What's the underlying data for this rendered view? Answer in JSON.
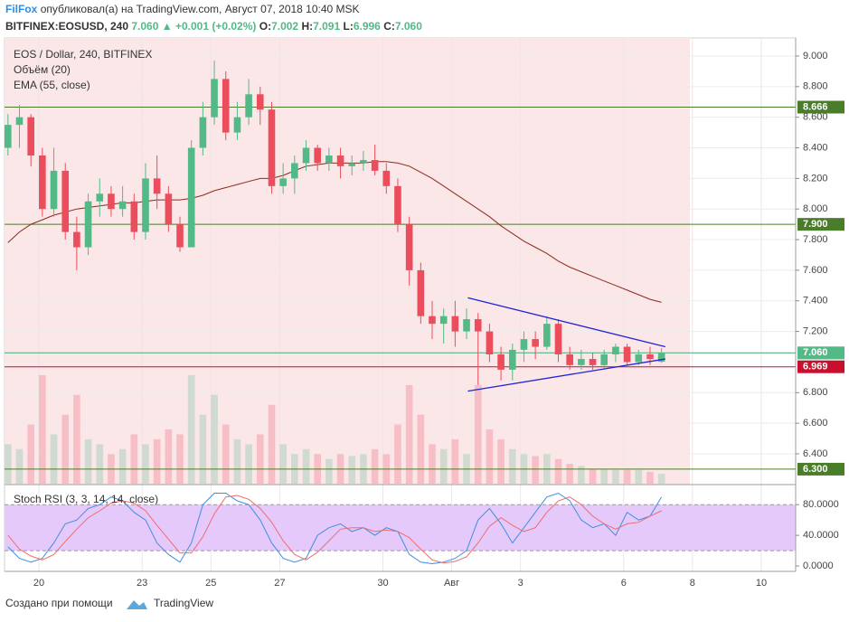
{
  "header": {
    "author": "FilFox",
    "published": "опубликовал(а) на TradingView.com, Август 07, 2018 10:40 MSK",
    "symbol": "BITFINEX:EOSUSD, 240",
    "last": "7.060",
    "arrow": "▲",
    "change": "+0.001 (+0.02%)",
    "ohlc": [
      [
        "O:",
        "7.002"
      ],
      [
        "H:",
        "7.091"
      ],
      [
        "L:",
        "6.996"
      ],
      [
        "C:",
        "7.060"
      ]
    ]
  },
  "chart_data": {
    "type": "candlestick",
    "title": "EOS / Dollar, 240, BITFINEX",
    "up_color": "#53b987",
    "down_color": "#eb4d5c",
    "grid": true,
    "xlim": [
      -1,
      22
    ],
    "xticks": [
      {
        "value": 0,
        "label": "20"
      },
      {
        "value": 3,
        "label": "23"
      },
      {
        "value": 5,
        "label": "25"
      },
      {
        "value": 7,
        "label": "27"
      },
      {
        "value": 10,
        "label": "30"
      },
      {
        "value": 12,
        "label": "Авг"
      },
      {
        "value": 14,
        "label": "3"
      },
      {
        "value": 17,
        "label": "6"
      },
      {
        "value": 19,
        "label": "8"
      },
      {
        "value": 21,
        "label": "10"
      }
    ],
    "ylim": [
      6.205,
      9.118
    ],
    "yticks": [
      {
        "value": 9.0,
        "label": "9.000"
      },
      {
        "value": 8.8,
        "label": "8.800"
      },
      {
        "value": 8.6,
        "label": "8.600"
      },
      {
        "value": 8.4,
        "label": "8.400"
      },
      {
        "value": 8.2,
        "label": "8.200"
      },
      {
        "value": 8.0,
        "label": "8.000"
      },
      {
        "value": 7.8,
        "label": "7.800"
      },
      {
        "value": 7.6,
        "label": "7.600"
      },
      {
        "value": 7.4,
        "label": "7.400"
      },
      {
        "value": 7.2,
        "label": "7.200"
      },
      {
        "value": 6.8,
        "label": "6.800"
      },
      {
        "value": 6.6,
        "label": "6.600"
      },
      {
        "value": 6.4,
        "label": "6.400"
      }
    ],
    "x": [
      -0.9,
      -0.567,
      -0.233,
      0.1,
      0.433,
      0.767,
      1.1,
      1.433,
      1.767,
      2.1,
      2.433,
      2.767,
      3.1,
      3.433,
      3.767,
      4.1,
      4.433,
      4.767,
      5.1,
      5.433,
      5.767,
      6.1,
      6.433,
      6.767,
      7.1,
      7.433,
      7.767,
      8.1,
      8.433,
      8.767,
      9.1,
      9.433,
      9.767,
      10.1,
      10.433,
      10.767,
      11.1,
      11.433,
      11.767,
      12.1,
      12.433,
      12.767,
      13.1,
      13.433,
      13.767,
      14.1,
      14.433,
      14.767,
      15.1,
      15.433,
      15.767,
      16.1,
      16.433,
      16.767,
      17.1,
      17.433,
      17.767,
      18.1
    ],
    "open": [
      8.4,
      8.55,
      8.6,
      8.35,
      8.0,
      8.25,
      7.85,
      7.75,
      8.05,
      8.1,
      8.0,
      8.05,
      7.85,
      8.2,
      8.1,
      7.9,
      7.75,
      8.4,
      8.6,
      8.85,
      8.5,
      8.6,
      8.75,
      8.65,
      8.15,
      8.2,
      8.3,
      8.4,
      8.3,
      8.35,
      8.28,
      8.3,
      8.32,
      8.25,
      8.15,
      7.9,
      7.6,
      7.3,
      7.25,
      7.3,
      7.2,
      7.28,
      7.2,
      7.05,
      6.95,
      7.08,
      7.15,
      7.1,
      7.25,
      7.05,
      6.98,
      7.02,
      6.98,
      7.05,
      7.1,
      7.0,
      7.05,
      7.002
    ],
    "high": [
      8.62,
      8.68,
      8.62,
      8.4,
      8.4,
      8.3,
      7.95,
      8.1,
      8.2,
      8.15,
      8.15,
      8.1,
      8.3,
      8.35,
      8.15,
      7.95,
      8.45,
      8.7,
      8.97,
      8.9,
      8.7,
      8.85,
      8.8,
      8.7,
      8.3,
      8.35,
      8.45,
      8.42,
      8.4,
      8.4,
      8.35,
      8.38,
      8.42,
      8.3,
      8.2,
      7.95,
      7.65,
      7.4,
      7.35,
      7.4,
      7.35,
      7.32,
      7.25,
      7.1,
      7.12,
      7.2,
      7.2,
      7.3,
      7.28,
      7.1,
      7.08,
      7.06,
      7.08,
      7.12,
      7.12,
      7.08,
      7.1,
      7.091
    ],
    "low": [
      8.35,
      8.4,
      8.28,
      7.95,
      7.95,
      7.8,
      7.6,
      7.7,
      7.95,
      7.95,
      7.95,
      7.8,
      7.8,
      8.0,
      7.85,
      7.72,
      7.75,
      8.35,
      8.55,
      8.45,
      8.45,
      8.55,
      8.55,
      8.1,
      8.1,
      8.1,
      8.25,
      8.25,
      8.25,
      8.2,
      8.22,
      8.25,
      8.22,
      8.1,
      7.85,
      7.5,
      7.25,
      7.15,
      7.12,
      7.1,
      7.15,
      6.85,
      7.0,
      6.88,
      6.88,
      7.0,
      7.02,
      7.08,
      7.0,
      6.95,
      6.95,
      6.95,
      6.96,
      7.0,
      6.98,
      6.98,
      6.98,
      6.996
    ],
    "close": [
      8.55,
      8.6,
      8.35,
      8.0,
      8.25,
      7.85,
      7.75,
      8.05,
      8.1,
      8.0,
      8.05,
      7.85,
      8.2,
      8.1,
      7.9,
      7.75,
      8.4,
      8.6,
      8.85,
      8.5,
      8.6,
      8.75,
      8.65,
      8.15,
      8.2,
      8.3,
      8.4,
      8.3,
      8.35,
      8.28,
      8.3,
      8.32,
      8.25,
      8.15,
      7.9,
      7.6,
      7.3,
      7.25,
      7.3,
      7.2,
      7.28,
      7.2,
      7.05,
      6.95,
      7.08,
      7.15,
      7.1,
      7.25,
      7.05,
      6.98,
      7.02,
      6.98,
      7.05,
      7.1,
      7.0,
      7.05,
      7.02,
      7.06
    ],
    "volume": {
      "name": "Объём (20)",
      "values": [
        40,
        35,
        60,
        110,
        50,
        70,
        90,
        45,
        40,
        30,
        35,
        50,
        40,
        45,
        55,
        50,
        110,
        70,
        90,
        60,
        45,
        40,
        50,
        80,
        40,
        30,
        35,
        30,
        25,
        30,
        28,
        30,
        35,
        30,
        60,
        100,
        70,
        40,
        35,
        45,
        30,
        100,
        55,
        45,
        35,
        30,
        28,
        30,
        25,
        20,
        18,
        15,
        15,
        14,
        14,
        14,
        12,
        10
      ]
    },
    "ema": {
      "name": "EMA (55, close)",
      "color": "#8e2a1a",
      "values": [
        7.78,
        7.85,
        7.9,
        7.93,
        7.96,
        7.98,
        8.0,
        8.01,
        8.02,
        8.03,
        8.04,
        8.04,
        8.05,
        8.06,
        8.06,
        8.06,
        8.07,
        8.09,
        8.12,
        8.14,
        8.16,
        8.18,
        8.2,
        8.2,
        8.22,
        8.25,
        8.28,
        8.29,
        8.3,
        8.3,
        8.3,
        8.3,
        8.31,
        8.31,
        8.3,
        8.28,
        8.24,
        8.2,
        8.15,
        8.1,
        8.05,
        8.0,
        7.95,
        7.89,
        7.84,
        7.79,
        7.75,
        7.71,
        7.66,
        7.62,
        7.59,
        7.56,
        7.53,
        7.5,
        7.47,
        7.44,
        7.41,
        7.39
      ]
    },
    "levels": [
      {
        "value": 8.666,
        "label": "8.666",
        "color": "#4a7d2a"
      },
      {
        "value": 7.9,
        "label": "7.900",
        "color": "#4a7d2a"
      },
      {
        "value": 6.3,
        "label": "6.300",
        "color": "#4a7d2a"
      },
      {
        "value": 6.969,
        "label": "6.969",
        "color": "#c8102e"
      },
      {
        "value": 7.059,
        "label": "7.059",
        "color": "#bbbbbb"
      },
      {
        "value": 7.06,
        "label": "7.060",
        "color": "#53b987"
      }
    ],
    "trendlines": [
      {
        "x": [
          12.47,
          18.21
        ],
        "y": [
          7.42,
          7.1
        ],
        "color": "#2323d6"
      },
      {
        "x": [
          12.47,
          18.21
        ],
        "y": [
          6.81,
          7.02
        ],
        "color": "#2323d6"
      }
    ],
    "stoch": {
      "name": "Stoch RSI (3, 3, 14, 14, close)",
      "ylim": [
        -7,
        105
      ],
      "yticks": [
        {
          "value": 80,
          "label": "80.0000"
        },
        {
          "value": 40,
          "label": "40.0000"
        },
        {
          "value": 0,
          "label": "0.0000"
        }
      ],
      "band": [
        20,
        80
      ],
      "series": [
        {
          "color": "#3d8fe0",
          "values": [
            25,
            10,
            5,
            10,
            30,
            55,
            60,
            75,
            80,
            90,
            85,
            70,
            60,
            30,
            15,
            5,
            30,
            80,
            95,
            95,
            85,
            80,
            60,
            30,
            10,
            5,
            10,
            40,
            50,
            55,
            45,
            50,
            40,
            50,
            45,
            15,
            5,
            3,
            5,
            10,
            20,
            60,
            75,
            55,
            30,
            50,
            70,
            90,
            95,
            85,
            60,
            50,
            55,
            40,
            70,
            60,
            65,
            90
          ]
        },
        {
          "color": "#ef6c6c",
          "values": [
            40,
            22,
            13,
            8,
            15,
            32,
            48,
            63,
            72,
            82,
            85,
            82,
            72,
            53,
            35,
            17,
            17,
            38,
            68,
            90,
            92,
            87,
            75,
            57,
            33,
            15,
            8,
            18,
            33,
            48,
            50,
            50,
            45,
            47,
            45,
            37,
            22,
            8,
            4,
            6,
            12,
            30,
            52,
            63,
            53,
            45,
            50,
            70,
            85,
            90,
            80,
            65,
            55,
            48,
            55,
            57,
            65,
            72
          ]
        }
      ]
    }
  },
  "footer": {
    "text": "Создано при помощи",
    "brand": "TradingView"
  }
}
